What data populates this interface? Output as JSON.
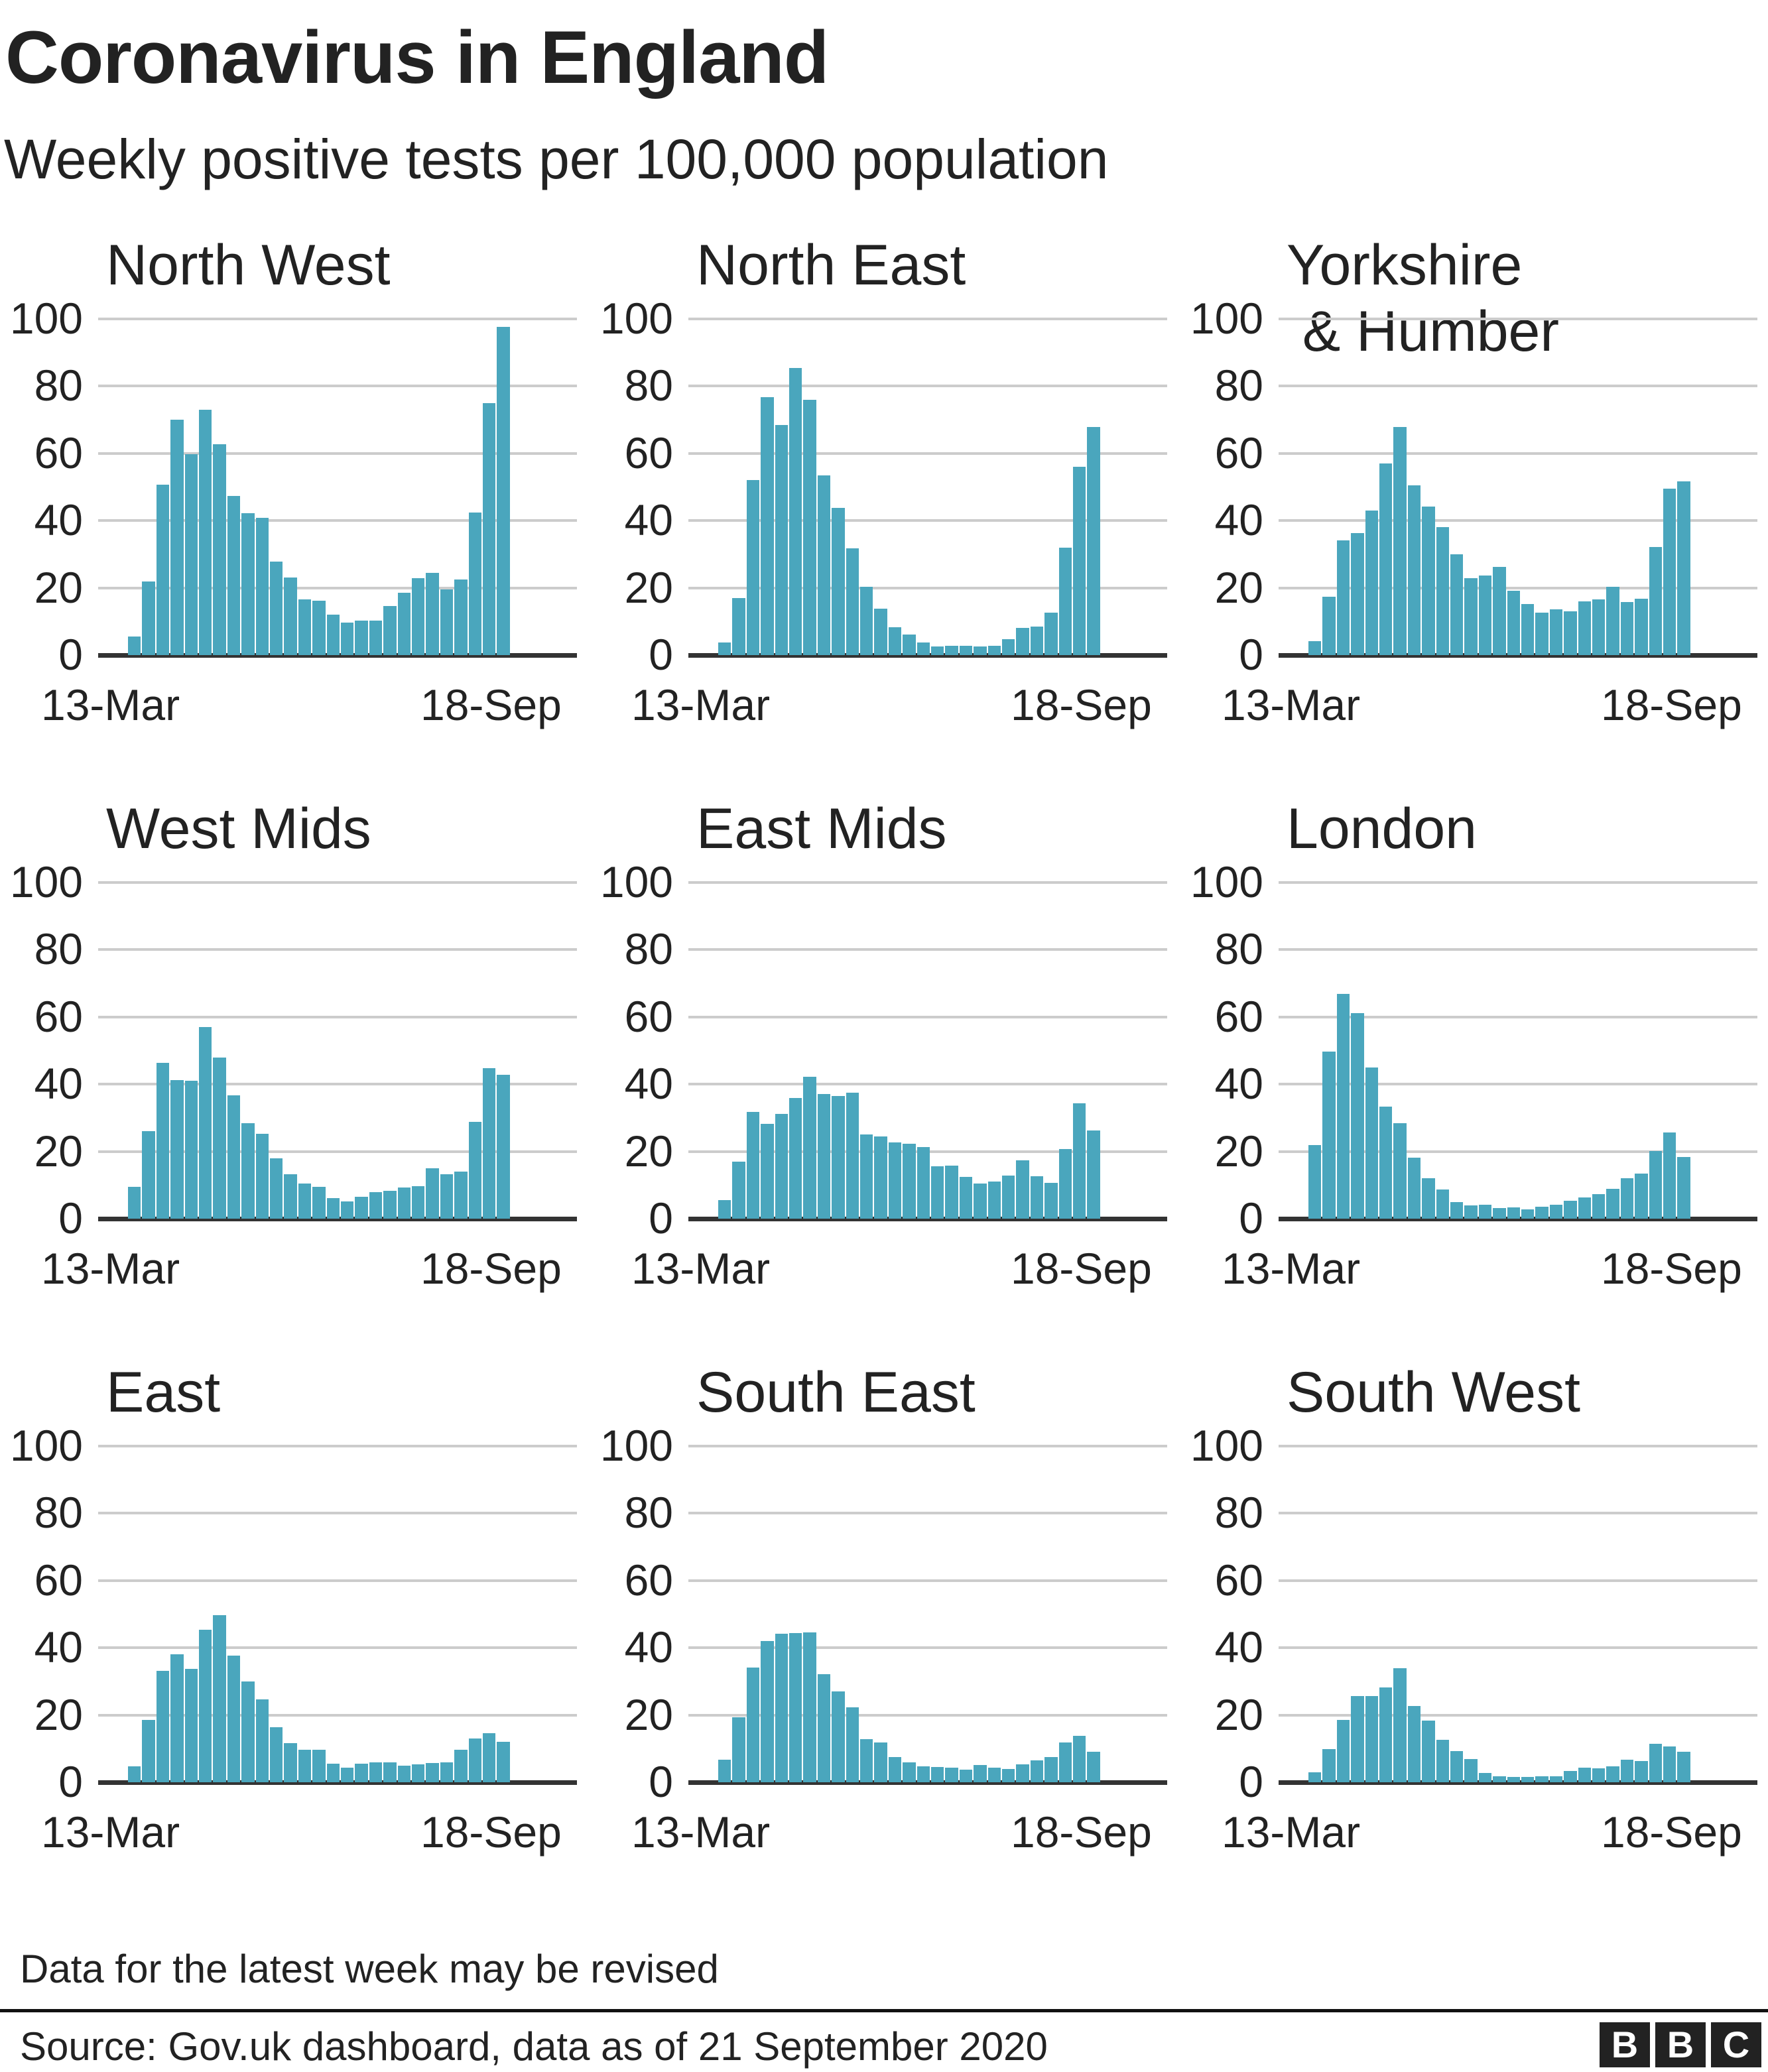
{
  "header": {
    "title": "Coronavirus in England",
    "subtitle": "Weekly positive tests per 100,000 population"
  },
  "footer": {
    "note": "Data for the latest week may be revised",
    "source": "Source: Gov.uk dashboard, data as of 21 September 2020",
    "logo_letters": [
      "B",
      "B",
      "C"
    ]
  },
  "colors": {
    "bar": "#4aa6bd",
    "grid": "#cccccc",
    "axis": "#333333",
    "text": "#222222"
  },
  "axis": {
    "y_ticks": [
      "100",
      "80",
      "60",
      "40",
      "20",
      "0"
    ],
    "x_start": "13-Mar",
    "x_end": "18-Sep"
  },
  "chart_data": [
    {
      "type": "bar",
      "title": "North West",
      "categories_range": [
        "13-Mar",
        "18-Sep"
      ],
      "ylim": [
        0,
        100
      ],
      "values": [
        5.6,
        21.8,
        50.7,
        70.1,
        59.8,
        72.9,
        62.8,
        47.3,
        42.2,
        40.8,
        27.8,
        23.0,
        16.5,
        16.1,
        12.1,
        9.7,
        10.2,
        10.2,
        14.5,
        18.6,
        22.8,
        24.4,
        19.6,
        22.5,
        42.4,
        75.0,
        97.6
      ]
    },
    {
      "type": "bar",
      "title": "North East",
      "categories_range": [
        "13-Mar",
        "18-Sep"
      ],
      "ylim": [
        0,
        100
      ],
      "values": [
        3.7,
        16.9,
        52.1,
        76.8,
        68.5,
        85.5,
        76.0,
        53.5,
        43.8,
        31.7,
        20.3,
        13.9,
        8.2,
        6.2,
        3.7,
        2.5,
        2.7,
        2.7,
        2.5,
        2.7,
        4.8,
        8.0,
        8.4,
        12.7,
        31.9,
        56.1,
        67.9
      ]
    },
    {
      "type": "bar",
      "title": "Yorkshire\n & Humber",
      "categories_range": [
        "13-Mar",
        "18-Sep"
      ],
      "ylim": [
        0,
        100
      ],
      "values": [
        4.2,
        17.3,
        34.1,
        36.3,
        43.0,
        57.1,
        67.9,
        50.5,
        44.2,
        38.1,
        29.9,
        22.8,
        23.6,
        26.2,
        19.1,
        15.1,
        12.7,
        13.7,
        13.1,
        15.9,
        16.5,
        20.3,
        15.7,
        16.7,
        32.1,
        49.5,
        51.7
      ]
    },
    {
      "type": "bar",
      "title": "West Mids",
      "categories_range": [
        "13-Mar",
        "18-Sep"
      ],
      "ylim": [
        0,
        100
      ],
      "values": [
        9.5,
        26.0,
        46.3,
        41.2,
        41.0,
        57.0,
        48.0,
        36.7,
        28.5,
        25.2,
        17.9,
        13.3,
        10.4,
        9.5,
        6.2,
        5.2,
        6.6,
        7.8,
        8.2,
        9.2,
        9.7,
        14.9,
        13.3,
        14.1,
        28.7,
        44.8,
        42.8
      ]
    },
    {
      "type": "bar",
      "title": "East Mids",
      "categories_range": [
        "13-Mar",
        "18-Sep"
      ],
      "ylim": [
        0,
        100
      ],
      "values": [
        5.6,
        16.9,
        31.7,
        28.2,
        31.1,
        35.9,
        42.2,
        37.1,
        36.4,
        37.4,
        25.0,
        24.4,
        22.6,
        22.2,
        21.3,
        15.5,
        15.7,
        12.5,
        10.5,
        11.0,
        12.9,
        17.3,
        12.7,
        10.7,
        20.8,
        34.3,
        26.3
      ]
    },
    {
      "type": "bar",
      "title": "London",
      "categories_range": [
        "13-Mar",
        "18-Sep"
      ],
      "ylim": [
        0,
        100
      ],
      "values": [
        21.8,
        49.7,
        66.9,
        61.2,
        45.0,
        33.3,
        28.5,
        18.1,
        12.0,
        8.6,
        4.9,
        3.9,
        4.1,
        3.1,
        3.3,
        2.8,
        3.6,
        4.2,
        5.4,
        6.4,
        7.2,
        8.9,
        12.0,
        13.5,
        20.1,
        25.6,
        18.4
      ]
    },
    {
      "type": "bar",
      "title": "East",
      "categories_range": [
        "13-Mar",
        "18-Sep"
      ],
      "ylim": [
        0,
        100
      ],
      "values": [
        4.8,
        18.6,
        33.1,
        38.1,
        33.7,
        45.3,
        49.7,
        37.6,
        29.9,
        24.6,
        16.3,
        11.7,
        9.7,
        9.7,
        5.6,
        4.4,
        5.6,
        6.0,
        6.0,
        5.0,
        5.4,
        5.8,
        6.0,
        9.7,
        13.1,
        14.5,
        12.1
      ]
    },
    {
      "type": "bar",
      "title": "South East",
      "categories_range": [
        "13-Mar",
        "18-Sep"
      ],
      "ylim": [
        0,
        100
      ],
      "values": [
        6.8,
        19.3,
        34.1,
        42.0,
        44.1,
        44.3,
        44.5,
        32.1,
        27.0,
        22.2,
        12.9,
        11.9,
        7.4,
        6.0,
        4.8,
        4.6,
        4.4,
        3.8,
        5.2,
        4.4,
        4.0,
        5.4,
        6.6,
        7.4,
        11.9,
        13.9,
        9.0
      ]
    },
    {
      "type": "bar",
      "title": "South West",
      "categories_range": [
        "13-Mar",
        "18-Sep"
      ],
      "ylim": [
        0,
        100
      ],
      "values": [
        3.0,
        9.9,
        18.6,
        25.6,
        25.6,
        28.3,
        33.9,
        22.6,
        18.4,
        12.7,
        9.3,
        7.0,
        2.8,
        1.8,
        1.5,
        1.6,
        1.8,
        1.8,
        3.3,
        4.4,
        4.2,
        4.8,
        6.8,
        6.4,
        11.4,
        10.7,
        9.0
      ]
    }
  ]
}
